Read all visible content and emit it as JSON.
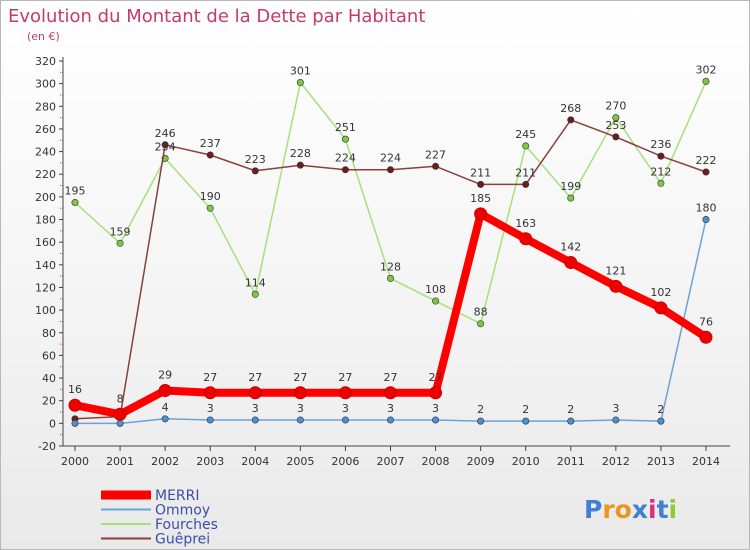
{
  "page": {
    "title": "Evolution du Montant de la Dette par Habitant",
    "subtitle": "(en €)",
    "logo_text": "Proxiti"
  },
  "chart_data": {
    "type": "line",
    "title": "Evolution du Montant de la Dette par Habitant",
    "subtitle": "(en €)",
    "xlabel": "",
    "ylabel": "",
    "x": [
      2000,
      2001,
      2002,
      2003,
      2004,
      2005,
      2006,
      2007,
      2008,
      2009,
      2010,
      2011,
      2012,
      2013,
      2014
    ],
    "ylim": [
      -20,
      320
    ],
    "ytick_step": 20,
    "grid": false,
    "legend_position": "bottom-left",
    "series": [
      {
        "name": "MERRI",
        "values": [
          16,
          8,
          29,
          27,
          27,
          27,
          27,
          27,
          27,
          185,
          163,
          142,
          121,
          102,
          76
        ],
        "color": "#ff0000",
        "emphasis": true
      },
      {
        "name": "Ommoy",
        "values": [
          0,
          0,
          4,
          3,
          3,
          3,
          3,
          3,
          3,
          2,
          2,
          2,
          3,
          2,
          180
        ],
        "color": "#6aa3d8",
        "marker_color": "#4a8fd0"
      },
      {
        "name": "Fourches",
        "values": [
          195,
          159,
          234,
          190,
          114,
          301,
          251,
          128,
          108,
          88,
          245,
          199,
          270,
          212,
          302
        ],
        "color": "#a6e07a",
        "marker_color": "#7cc83f"
      },
      {
        "name": "Guêprei",
        "values": [
          4,
          6,
          246,
          237,
          223,
          228,
          224,
          224,
          227,
          211,
          211,
          268,
          253,
          236,
          222
        ],
        "color": "#8a3f3f",
        "marker_color": "#6b1e1e"
      }
    ],
    "data_labels": [
      {
        "series": "MERRI",
        "text": [
          "16",
          "8",
          "29",
          "27",
          "27",
          "27",
          "27",
          "27",
          "27",
          "185",
          "163",
          "142",
          "121",
          "102",
          "76"
        ]
      },
      {
        "series": "Ommoy",
        "text": [
          "",
          "",
          "4",
          "3",
          "3",
          "3",
          "3",
          "3",
          "3",
          "2",
          "2",
          "2",
          "3",
          "2",
          "180"
        ]
      },
      {
        "series": "Fourches",
        "text": [
          "195",
          "159",
          "234",
          "190",
          "114",
          "301",
          "251",
          "128",
          "108",
          "88",
          "245",
          "199",
          "270",
          "212",
          "302"
        ]
      },
      {
        "series": "Guêprei",
        "text": [
          "",
          "",
          "246",
          "237",
          "223",
          "228",
          "224",
          "224",
          "227",
          "211",
          "211",
          "268",
          "253",
          "236",
          "222"
        ]
      }
    ]
  }
}
